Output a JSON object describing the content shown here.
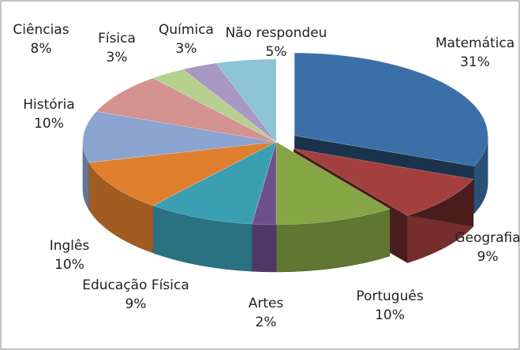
{
  "chart_data": {
    "type": "pie3d",
    "categories": [
      "Matemática",
      "Geografia",
      "Português",
      "Artes",
      "Educação Física",
      "Inglês",
      "História",
      "Ciências",
      "Física",
      "Química",
      "Não respondeu"
    ],
    "values": [
      31,
      9,
      10,
      2,
      9,
      10,
      10,
      8,
      3,
      3,
      5
    ],
    "value_labels": [
      "31%",
      "9%",
      "10%",
      "2%",
      "9%",
      "10%",
      "10%",
      "8%",
      "3%",
      "3%",
      "5%"
    ],
    "colors": [
      "#3b6fa8",
      "#a3403d",
      "#86a545",
      "#6c4f8e",
      "#3a9fb3",
      "#e0802f",
      "#8ba4d0",
      "#d49290",
      "#b7cf8f",
      "#a898c2",
      "#8cc3d5"
    ],
    "exploded": [
      0,
      1
    ]
  }
}
